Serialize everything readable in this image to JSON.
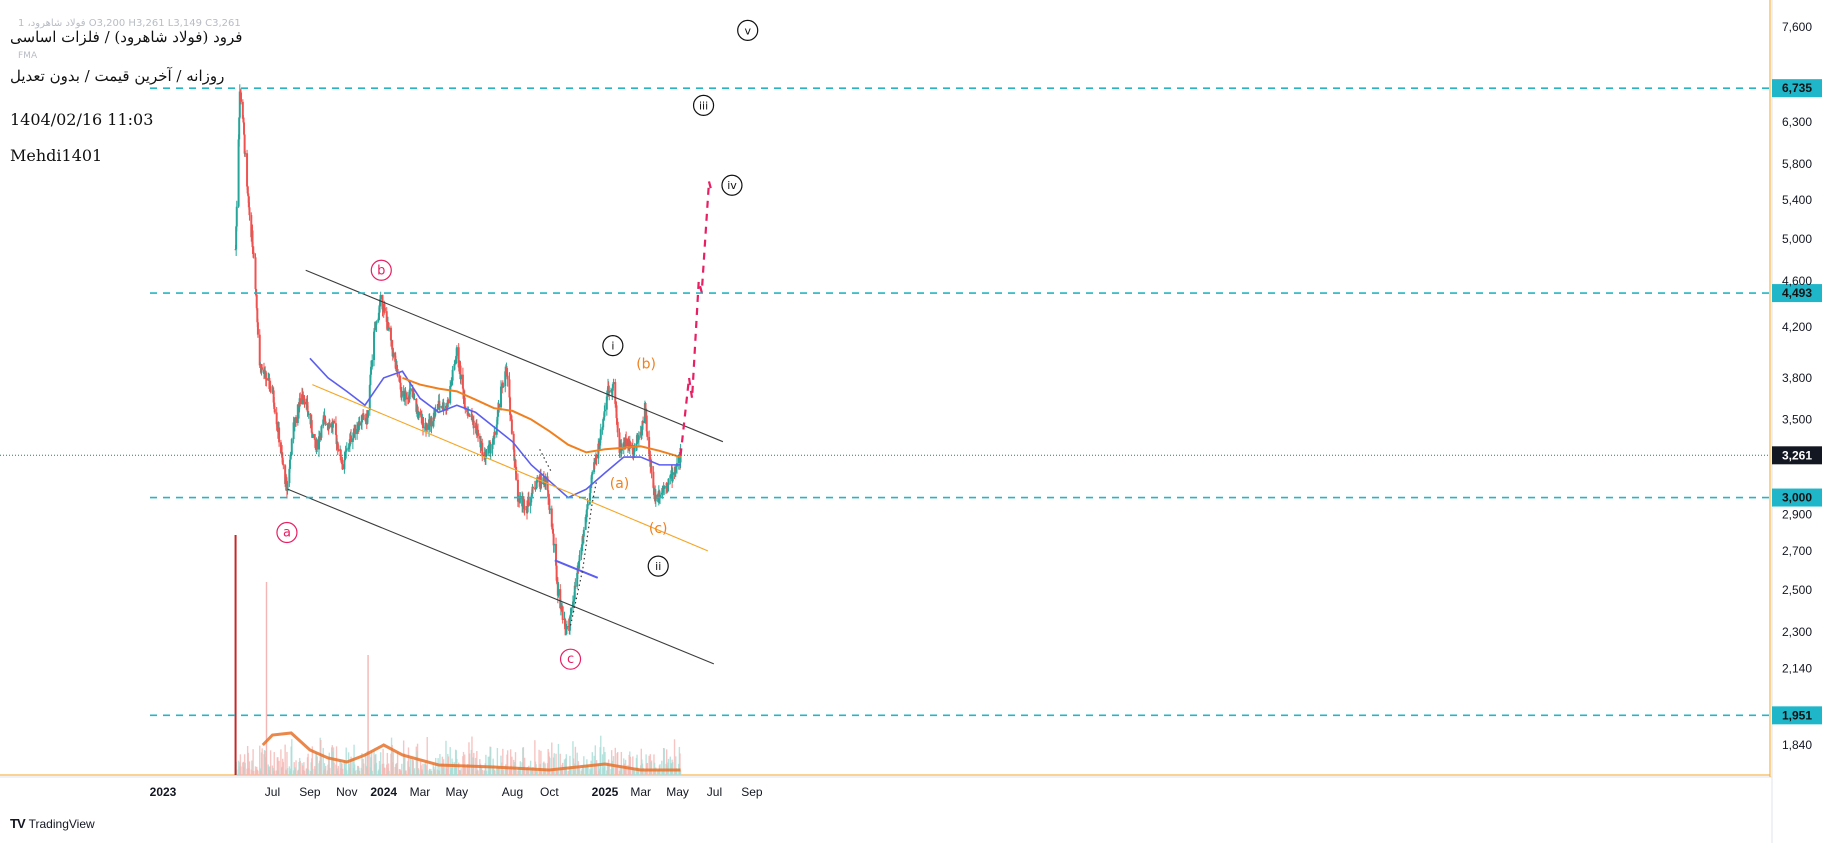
{
  "header": {
    "symbol_line": "فرود (فولاد شاهرود) / فلزات اساسی",
    "meta_line": "روزانه / آخرین قیمت / بدون تعدیل",
    "ohlc_faint": "1 ،فولاد شاهرود O3,200 H3,261 L3,149 C3,261",
    "fma_label": "FMA",
    "date_time": "1404/02/16 11:03",
    "author": "Mehdi1401"
  },
  "footer": {
    "brand_mark": "TV",
    "brand_name": "TradingView"
  },
  "colors": {
    "up": "#26a69a",
    "down": "#ef5350",
    "ma_short": "#5b5ef0",
    "ma_long": "#f0801f",
    "horizontal_level": "#26b5c4",
    "channel": "#3c3c3c",
    "inner_channel": "#f5a623",
    "projection": "#e91e63",
    "last_price_label": "#131722"
  },
  "chart_data": {
    "type": "candlestick",
    "y_axis": {
      "scale": "log",
      "range": [
        1750,
        7700
      ],
      "ticks": [
        "1,840",
        "1,951",
        "2,140",
        "2,300",
        "2,500",
        "2,700",
        "2,900",
        "3,000",
        "3,261",
        "3,500",
        "3,800",
        "4,200",
        "4,493",
        "4,600",
        "5,000",
        "5,400",
        "5,800",
        "6,300",
        "6,735",
        "7,600"
      ]
    },
    "x_axis": {
      "labels": [
        "2023",
        "Jul",
        "Sep",
        "Nov",
        "2024",
        "Mar",
        "May",
        "Aug",
        "Oct",
        "2025",
        "Mar",
        "May",
        "Jul",
        "Sep"
      ],
      "bold_labels": [
        "2023",
        "2024",
        "2025"
      ]
    },
    "last_price": "3,261",
    "horizontal_levels": [
      {
        "value": "6,735",
        "price": 6735
      },
      {
        "value": "4,493",
        "price": 4493
      },
      {
        "value": "3,000",
        "price": 3000
      },
      {
        "value": "1,951",
        "price": 1951
      }
    ],
    "price_path": [
      [
        "2023-05-01",
        4900
      ],
      [
        "2023-05-08",
        6700
      ],
      [
        "2023-05-12",
        6500
      ],
      [
        "2023-05-20",
        5500
      ],
      [
        "2023-06-01",
        4800
      ],
      [
        "2023-06-10",
        3900
      ],
      [
        "2023-06-20",
        3800
      ],
      [
        "2023-07-01",
        3700
      ],
      [
        "2023-07-08",
        3500
      ],
      [
        "2023-07-18",
        3200
      ],
      [
        "2023-07-25",
        3050
      ],
      [
        "2023-08-05",
        3450
      ],
      [
        "2023-08-20",
        3700
      ],
      [
        "2023-09-01",
        3500
      ],
      [
        "2023-09-10",
        3300
      ],
      [
        "2023-09-25",
        3500
      ],
      [
        "2023-10-10",
        3450
      ],
      [
        "2023-10-25",
        3200
      ],
      [
        "2023-11-10",
        3400
      ],
      [
        "2023-11-25",
        3500
      ],
      [
        "2023-12-05",
        3500
      ],
      [
        "2023-12-15",
        4100
      ],
      [
        "2023-12-28",
        4450
      ],
      [
        "2024-01-10",
        4150
      ],
      [
        "2024-01-20",
        3900
      ],
      [
        "2024-02-01",
        3650
      ],
      [
        "2024-02-15",
        3700
      ],
      [
        "2024-03-01",
        3500
      ],
      [
        "2024-03-15",
        3450
      ],
      [
        "2024-04-01",
        3600
      ],
      [
        "2024-04-15",
        3600
      ],
      [
        "2024-05-01",
        4000
      ],
      [
        "2024-05-15",
        3600
      ],
      [
        "2024-06-01",
        3450
      ],
      [
        "2024-06-15",
        3250
      ],
      [
        "2024-07-01",
        3350
      ],
      [
        "2024-07-15",
        3750
      ],
      [
        "2024-07-22",
        3850
      ],
      [
        "2024-08-01",
        3400
      ],
      [
        "2024-08-10",
        3000
      ],
      [
        "2024-08-25",
        2950
      ],
      [
        "2024-09-10",
        3100
      ],
      [
        "2024-09-25",
        3100
      ],
      [
        "2024-10-05",
        2850
      ],
      [
        "2024-10-15",
        2500
      ],
      [
        "2024-10-25",
        2350
      ],
      [
        "2024-11-01",
        2300
      ],
      [
        "2024-11-20",
        2650
      ],
      [
        "2024-12-05",
        3000
      ],
      [
        "2024-12-15",
        3200
      ],
      [
        "2024-12-25",
        3400
      ],
      [
        "2025-01-05",
        3700
      ],
      [
        "2025-01-15",
        3750
      ],
      [
        "2025-01-25",
        3300
      ],
      [
        "2025-02-05",
        3350
      ],
      [
        "2025-02-15",
        3300
      ],
      [
        "2025-03-01",
        3400
      ],
      [
        "2025-03-08",
        3600
      ],
      [
        "2025-03-15",
        3250
      ],
      [
        "2025-03-25",
        3000
      ],
      [
        "2025-04-05",
        3050
      ],
      [
        "2025-04-15",
        3100
      ],
      [
        "2025-04-25",
        3150
      ],
      [
        "2025-05-06",
        3261
      ]
    ],
    "ma_short": [
      [
        "2023-09-01",
        3950
      ],
      [
        "2023-10-01",
        3800
      ],
      [
        "2023-11-01",
        3700
      ],
      [
        "2023-12-01",
        3600
      ],
      [
        "2024-01-01",
        3800
      ],
      [
        "2024-02-01",
        3850
      ],
      [
        "2024-03-01",
        3650
      ],
      [
        "2024-04-01",
        3550
      ],
      [
        "2024-05-01",
        3600
      ],
      [
        "2024-06-01",
        3550
      ],
      [
        "2024-07-01",
        3450
      ],
      [
        "2024-08-01",
        3350
      ],
      [
        "2024-09-01",
        3200
      ],
      [
        "2024-10-01",
        3100
      ],
      [
        "2024-11-01",
        3000
      ],
      [
        "2024-12-01",
        3050
      ],
      [
        "2025-01-01",
        3150
      ],
      [
        "2025-02-01",
        3250
      ],
      [
        "2025-03-01",
        3250
      ],
      [
        "2025-04-01",
        3200
      ],
      [
        "2025-05-06",
        3200
      ]
    ],
    "ma_long": [
      [
        "2024-02-01",
        3800
      ],
      [
        "2024-03-01",
        3750
      ],
      [
        "2024-04-01",
        3720
      ],
      [
        "2024-05-01",
        3700
      ],
      [
        "2024-06-01",
        3640
      ],
      [
        "2024-07-01",
        3580
      ],
      [
        "2024-08-01",
        3560
      ],
      [
        "2024-09-01",
        3500
      ],
      [
        "2024-10-01",
        3420
      ],
      [
        "2024-11-01",
        3330
      ],
      [
        "2024-12-01",
        3280
      ],
      [
        "2025-01-01",
        3300
      ],
      [
        "2025-02-01",
        3310
      ],
      [
        "2025-03-01",
        3320
      ],
      [
        "2025-04-01",
        3290
      ],
      [
        "2025-05-06",
        3250
      ]
    ],
    "trendlines": [
      {
        "role": "channel",
        "from": [
          "2023-07-26",
          3050
        ],
        "to": [
          "2025-06-30",
          2160
        ]
      },
      {
        "role": "channel",
        "from": [
          "2023-08-25",
          4700
        ],
        "to": [
          "2025-07-15",
          3350
        ]
      },
      {
        "role": "inner_channel",
        "from": [
          "2023-09-05",
          3750
        ],
        "to": [
          "2025-06-20",
          2700
        ]
      },
      {
        "role": "ma_short",
        "from": [
          "2024-10-10",
          2650
        ],
        "to": [
          "2024-12-20",
          2560
        ]
      }
    ],
    "projection_path": [
      [
        "2025-05-06",
        3261
      ],
      [
        "2025-05-20",
        3800
      ],
      [
        "2025-05-25",
        3650
      ],
      [
        "2025-06-05",
        4600
      ],
      [
        "2025-06-10",
        4500
      ],
      [
        "2025-06-22",
        5600
      ],
      [
        "2025-06-26",
        5500
      ]
    ],
    "wave_labels": [
      {
        "text": "a",
        "date": "2023-07-25",
        "price": 2800,
        "style": "circle-pink"
      },
      {
        "text": "b",
        "date": "2023-12-28",
        "price": 4700,
        "style": "circle-pink"
      },
      {
        "text": "c",
        "date": "2024-11-05",
        "price": 2180,
        "style": "circle-pink"
      },
      {
        "text": "i",
        "date": "2025-01-14",
        "price": 4050,
        "style": "circle-black"
      },
      {
        "text": "ii",
        "date": "2025-03-30",
        "price": 2620,
        "style": "circle-black"
      },
      {
        "text": "iii",
        "date": "2025-06-13",
        "price": 6510,
        "style": "circle-black"
      },
      {
        "text": "iv",
        "date": "2025-07-30",
        "price": 5560,
        "style": "circle-black"
      },
      {
        "text": "v",
        "date": "2025-08-25",
        "price": 7550,
        "style": "circle-black"
      },
      {
        "text": "(a)",
        "date": "2025-01-25",
        "price": 3080,
        "style": "orange"
      },
      {
        "text": "(b)",
        "date": "2025-03-10",
        "price": 3900,
        "style": "orange"
      },
      {
        "text": "(c)",
        "date": "2025-03-30",
        "price": 2820,
        "style": "orange"
      }
    ]
  }
}
